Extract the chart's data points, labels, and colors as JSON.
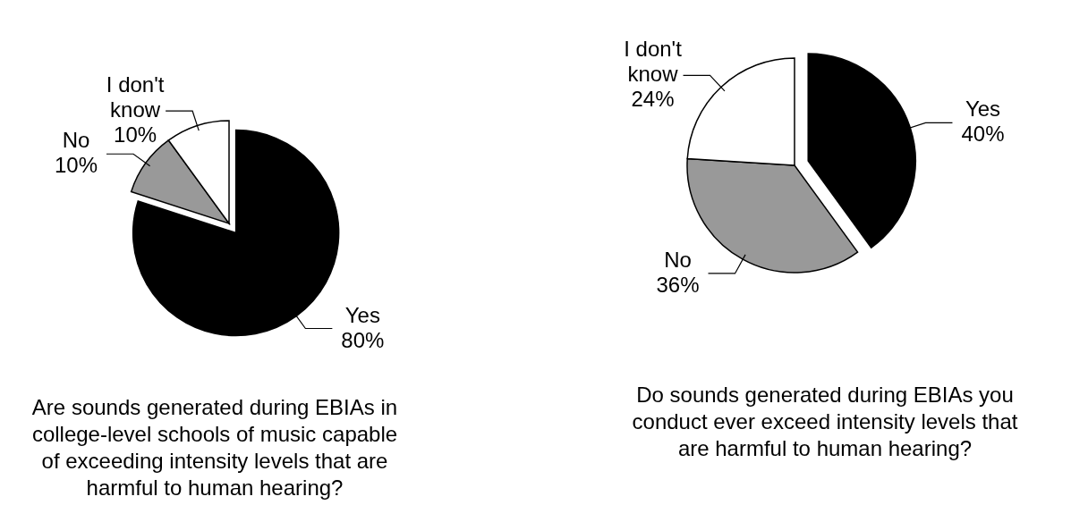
{
  "chart_data": [
    {
      "type": "pie",
      "title": "Are sounds generated during EBIAs in college-level schools of music capable of exceeding intensity levels that are harmful to human hearing?",
      "categories": [
        "Yes",
        "No",
        "I don't know"
      ],
      "values": [
        80,
        10,
        10
      ],
      "colors": [
        "#000000",
        "#999999",
        "#ffffff"
      ],
      "value_labels": [
        "80%",
        "10%",
        "10%"
      ]
    },
    {
      "type": "pie",
      "title": "Do sounds generated during EBIAs you conduct ever exceed intensity levels that are harmful to human hearing?",
      "categories": [
        "Yes",
        "No",
        "I don't know"
      ],
      "values": [
        40,
        36,
        24
      ],
      "colors": [
        "#000000",
        "#999999",
        "#ffffff"
      ],
      "value_labels": [
        "40%",
        "36%",
        "24%"
      ]
    }
  ]
}
